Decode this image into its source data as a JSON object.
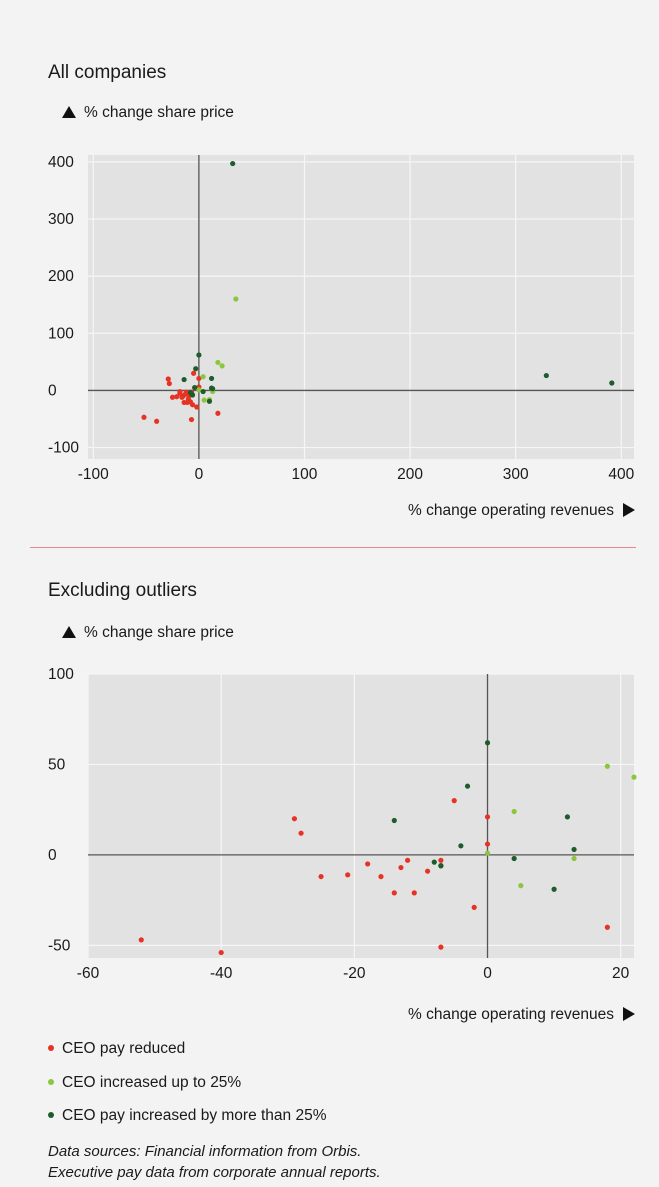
{
  "colors": {
    "reduced": "#e63323",
    "up25": "#8cc63e",
    "over25": "#1e5c2c",
    "plot_bg": "#e2e2e2",
    "grid": "#f6f6f6",
    "axis": "#555555"
  },
  "chart_data": [
    {
      "type": "scatter",
      "title": "All companies",
      "ylabel": "% change share price",
      "xlabel": "% change operating revenues",
      "xlim": [
        -105,
        412
      ],
      "ylim": [
        -120,
        412
      ],
      "xticks": [
        -100,
        0,
        100,
        200,
        300,
        400
      ],
      "yticks": [
        -100,
        0,
        100,
        200,
        300,
        400
      ],
      "grid": true,
      "series": [
        {
          "name": "CEO pay reduced",
          "color_key": "reduced",
          "points": [
            [
              -52,
              -47
            ],
            [
              -40,
              -54
            ],
            [
              -29,
              20
            ],
            [
              -28,
              12
            ],
            [
              -25,
              -12
            ],
            [
              -21,
              -11
            ],
            [
              -18,
              -5
            ],
            [
              -16,
              -12
            ],
            [
              -14,
              -21
            ],
            [
              -13,
              -7
            ],
            [
              -12,
              -3
            ],
            [
              -11,
              -21
            ],
            [
              -9,
              -9
            ],
            [
              -7,
              -3
            ],
            [
              -7,
              -51
            ],
            [
              -5,
              30
            ],
            [
              -2,
              -29
            ],
            [
              0,
              21
            ],
            [
              0,
              6
            ],
            [
              18,
              -40
            ],
            [
              -15,
              -10
            ],
            [
              -10,
              -15
            ],
            [
              -8,
              -20
            ],
            [
              -18,
              -2
            ],
            [
              -11,
              -4
            ],
            [
              -6,
              -25
            ]
          ]
        },
        {
          "name": "CEO increased up to 25%",
          "color_key": "up25",
          "points": [
            [
              4,
              24
            ],
            [
              5,
              -17
            ],
            [
              13,
              -2
            ],
            [
              18,
              49
            ],
            [
              22,
              43
            ],
            [
              35,
              160
            ],
            [
              0,
              1
            ],
            [
              10,
              -16
            ]
          ]
        },
        {
          "name": "CEO pay increased by more than 25%",
          "color_key": "over25",
          "points": [
            [
              -14,
              19
            ],
            [
              -8,
              -4
            ],
            [
              -7,
              -6
            ],
            [
              -4,
              5
            ],
            [
              -3,
              38
            ],
            [
              0,
              62
            ],
            [
              4,
              -2
            ],
            [
              10,
              -19
            ],
            [
              12,
              21
            ],
            [
              13,
              3
            ],
            [
              32,
              397
            ],
            [
              329,
              26
            ],
            [
              391,
              13
            ],
            [
              -6,
              -8
            ],
            [
              12,
              4
            ]
          ]
        }
      ]
    },
    {
      "type": "scatter",
      "title": "Excluding outliers",
      "ylabel": "% change share price",
      "xlabel": "% change operating revenues",
      "xlim": [
        -60,
        22
      ],
      "ylim": [
        -57,
        100
      ],
      "xticks": [
        -60,
        -40,
        -20,
        0,
        20
      ],
      "yticks": [
        -50,
        0,
        50,
        100
      ],
      "grid": true,
      "series": [
        {
          "name": "CEO pay reduced",
          "color_key": "reduced",
          "points": [
            [
              -52,
              -47
            ],
            [
              -40,
              -54
            ],
            [
              -29,
              20
            ],
            [
              -28,
              12
            ],
            [
              -25,
              -12
            ],
            [
              -21,
              -11
            ],
            [
              -18,
              -5
            ],
            [
              -16,
              -12
            ],
            [
              -14,
              -21
            ],
            [
              -13,
              -7
            ],
            [
              -12,
              -3
            ],
            [
              -11,
              -21
            ],
            [
              -9,
              -9
            ],
            [
              -7,
              -3
            ],
            [
              -7,
              -51
            ],
            [
              -5,
              30
            ],
            [
              -2,
              -29
            ],
            [
              0,
              21
            ],
            [
              0,
              6
            ],
            [
              18,
              -40
            ]
          ]
        },
        {
          "name": "CEO increased up to 25%",
          "color_key": "up25",
          "points": [
            [
              4,
              24
            ],
            [
              5,
              -17
            ],
            [
              13,
              -2
            ],
            [
              18,
              49
            ],
            [
              22,
              43
            ],
            [
              0,
              1
            ]
          ]
        },
        {
          "name": "CEO pay increased by more than 25%",
          "color_key": "over25",
          "points": [
            [
              -14,
              19
            ],
            [
              -8,
              -4
            ],
            [
              -7,
              -6
            ],
            [
              -4,
              5
            ],
            [
              -3,
              38
            ],
            [
              0,
              62
            ],
            [
              4,
              -2
            ],
            [
              10,
              -19
            ],
            [
              12,
              21
            ],
            [
              13,
              3
            ],
            [
              -7,
              -6
            ]
          ]
        }
      ]
    }
  ],
  "legend": [
    {
      "label": "CEO pay reduced",
      "color_key": "reduced"
    },
    {
      "label": "CEO increased up to 25%",
      "color_key": "up25"
    },
    {
      "label": "CEO pay increased by more than 25%",
      "color_key": "over25"
    }
  ],
  "source": {
    "line1": "Data sources: Financial information from Orbis.",
    "line2": "Executive pay data from corporate annual reports."
  }
}
